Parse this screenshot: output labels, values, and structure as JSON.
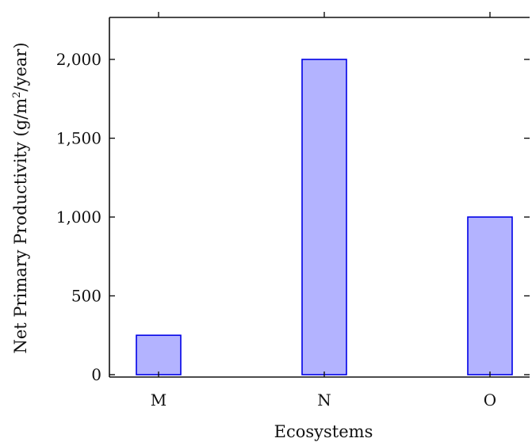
{
  "chart_data": {
    "type": "bar",
    "categories": [
      "M",
      "N",
      "O"
    ],
    "values": [
      250,
      2000,
      1000
    ],
    "xlabel": "Ecosystems",
    "ylabel_main": "Net Primary Productivity (g/m",
    "ylabel_sup": "2",
    "ylabel_end": "/year)",
    "ylim": [
      0,
      2250
    ],
    "y_ticks": [
      0,
      500,
      1000,
      1500,
      2000
    ],
    "y_tick_labels": [
      "0",
      "500",
      "1,000",
      "1,500",
      "2,000"
    ],
    "grid": false,
    "bar_fill": "#b3b3ff",
    "bar_stroke": "#0000e6"
  }
}
